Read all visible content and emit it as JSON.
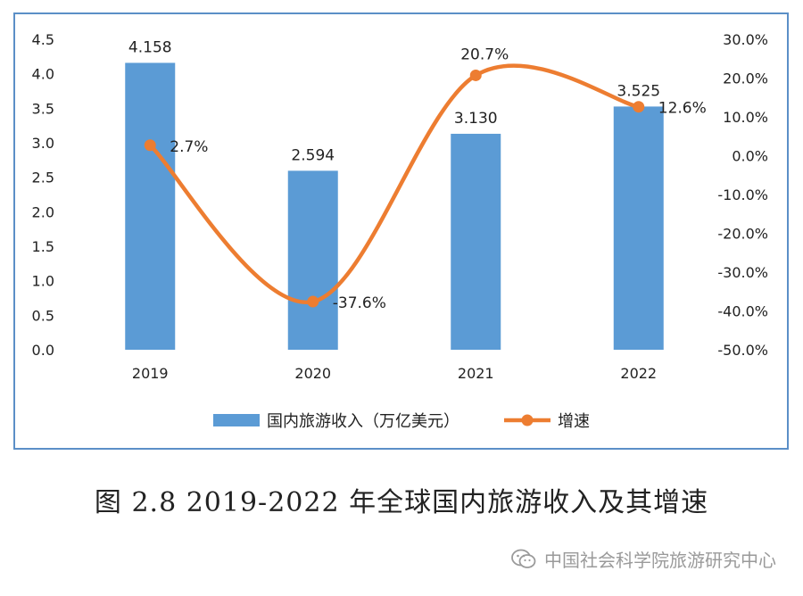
{
  "chart_data": {
    "type": "bar",
    "categories": [
      "2019",
      "2020",
      "2021",
      "2022"
    ],
    "series": [
      {
        "name": "国内旅游收入（万亿美元）",
        "type": "bar",
        "axis": "left",
        "values": [
          4.158,
          2.594,
          3.13,
          3.525
        ],
        "labels": [
          "4.158",
          "2.594",
          "3.130",
          "3.525"
        ],
        "color": "#5b9bd5"
      },
      {
        "name": "增速",
        "type": "line",
        "axis": "right",
        "values": [
          2.7,
          -37.6,
          20.7,
          12.6
        ],
        "labels": [
          "2.7%",
          "-37.6%",
          "20.7%",
          "12.6%"
        ],
        "color": "#ed7d31"
      }
    ],
    "y_left": {
      "ylim": [
        0,
        4.5
      ],
      "ticks": [
        "4.5",
        "4.0",
        "3.5",
        "3.0",
        "2.5",
        "2.0",
        "1.5",
        "1.0",
        "0.5",
        "0.0"
      ]
    },
    "y_right": {
      "ylim": [
        -50,
        30
      ],
      "ticks": [
        "30.0%",
        "20.0%",
        "10.0%",
        "0.0%",
        "-10.0%",
        "-20.0%",
        "-30.0%",
        "-40.0%",
        "-50.0%"
      ]
    },
    "grid": false,
    "legend": "bottom",
    "caption": "图 2.8 2019-2022 年全球国内旅游收入及其增速"
  },
  "watermark": {
    "text": "中国社会科学院旅游研究中心",
    "icon": "wechat-icon"
  }
}
